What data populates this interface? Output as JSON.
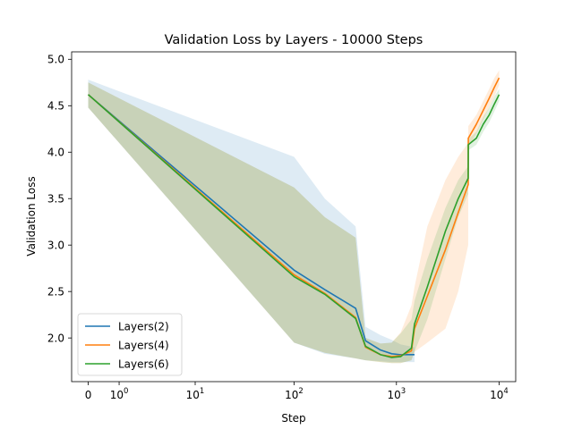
{
  "chart_data": {
    "type": "line",
    "title": "Validation Loss by Layers - 10000 Steps",
    "xlabel": "Step",
    "ylabel": "Validation Loss",
    "xscale": "symlog",
    "xlim": [
      -0.45,
      14500
    ],
    "ylim": [
      1.53,
      5.08
    ],
    "xticks": [
      {
        "value": 0,
        "label": "0"
      },
      {
        "value": 1,
        "label": "10",
        "exp": "0"
      },
      {
        "value": 10,
        "label": "10",
        "exp": "1"
      },
      {
        "value": 100,
        "label": "10",
        "exp": "2"
      },
      {
        "value": 1000,
        "label": "10",
        "exp": "3"
      },
      {
        "value": 10000,
        "label": "10",
        "exp": "4"
      }
    ],
    "yticks": [
      2.0,
      2.5,
      3.0,
      3.5,
      4.0,
      4.5,
      5.0
    ],
    "ytick_labels": [
      "2.0",
      "2.5",
      "3.0",
      "3.5",
      "4.0",
      "4.5",
      "5.0"
    ],
    "grid": false,
    "legend_position": "lower-left",
    "series": [
      {
        "name": "Layers(2)",
        "color": "#1f77b4",
        "x": [
          0,
          100,
          200,
          400,
          500,
          700,
          900,
          1100,
          1500
        ],
        "y": [
          4.62,
          2.73,
          2.52,
          2.32,
          1.97,
          1.87,
          1.83,
          1.82,
          1.82
        ],
        "upper": [
          4.78,
          3.95,
          3.5,
          3.2,
          2.12,
          2.03,
          1.98,
          1.93,
          1.9
        ],
        "lower": [
          4.48,
          1.95,
          1.83,
          1.78,
          1.76,
          1.75,
          1.74,
          1.74,
          1.74
        ]
      },
      {
        "name": "Layers(4)",
        "color": "#ff7f0e",
        "x": [
          0,
          100,
          200,
          400,
          500,
          700,
          900,
          1100,
          1400,
          1500,
          2000,
          3000,
          4000,
          5000,
          5010,
          6000,
          7000,
          8000,
          9000,
          10000
        ],
        "y": [
          4.62,
          2.68,
          2.48,
          2.22,
          1.9,
          1.82,
          1.8,
          1.81,
          1.86,
          2.1,
          2.45,
          2.95,
          3.35,
          3.65,
          4.15,
          4.3,
          4.45,
          4.58,
          4.7,
          4.8
        ],
        "upper": [
          4.75,
          3.62,
          3.3,
          3.08,
          2.0,
          1.94,
          1.95,
          2.06,
          2.35,
          2.55,
          3.2,
          3.7,
          3.95,
          4.1,
          4.28,
          4.4,
          4.55,
          4.68,
          4.8,
          4.88
        ],
        "lower": [
          4.48,
          1.95,
          1.84,
          1.78,
          1.76,
          1.74,
          1.73,
          1.73,
          1.76,
          1.85,
          1.95,
          2.1,
          2.5,
          3.0,
          4.05,
          4.2,
          4.35,
          4.48,
          4.6,
          4.72
        ]
      },
      {
        "name": "Layers(6)",
        "color": "#2ca02c",
        "x": [
          0,
          100,
          200,
          400,
          500,
          700,
          900,
          1100,
          1400,
          1500,
          2000,
          3000,
          4000,
          5000,
          5010,
          6000,
          7000,
          8000,
          9000,
          10000
        ],
        "y": [
          4.62,
          2.66,
          2.47,
          2.21,
          1.91,
          1.82,
          1.79,
          1.8,
          1.89,
          2.15,
          2.55,
          3.15,
          3.5,
          3.72,
          4.08,
          4.15,
          4.3,
          4.4,
          4.52,
          4.62
        ],
        "upper": [
          4.75,
          3.62,
          3.3,
          3.08,
          2.0,
          1.94,
          1.95,
          2.05,
          2.2,
          2.4,
          2.85,
          3.4,
          3.7,
          3.85,
          4.14,
          4.22,
          4.38,
          4.48,
          4.6,
          4.68
        ],
        "lower": [
          4.48,
          1.95,
          1.84,
          1.78,
          1.76,
          1.74,
          1.73,
          1.73,
          1.76,
          1.85,
          2.2,
          2.85,
          3.3,
          3.55,
          4.02,
          4.08,
          4.22,
          4.32,
          4.44,
          4.55
        ]
      }
    ]
  }
}
